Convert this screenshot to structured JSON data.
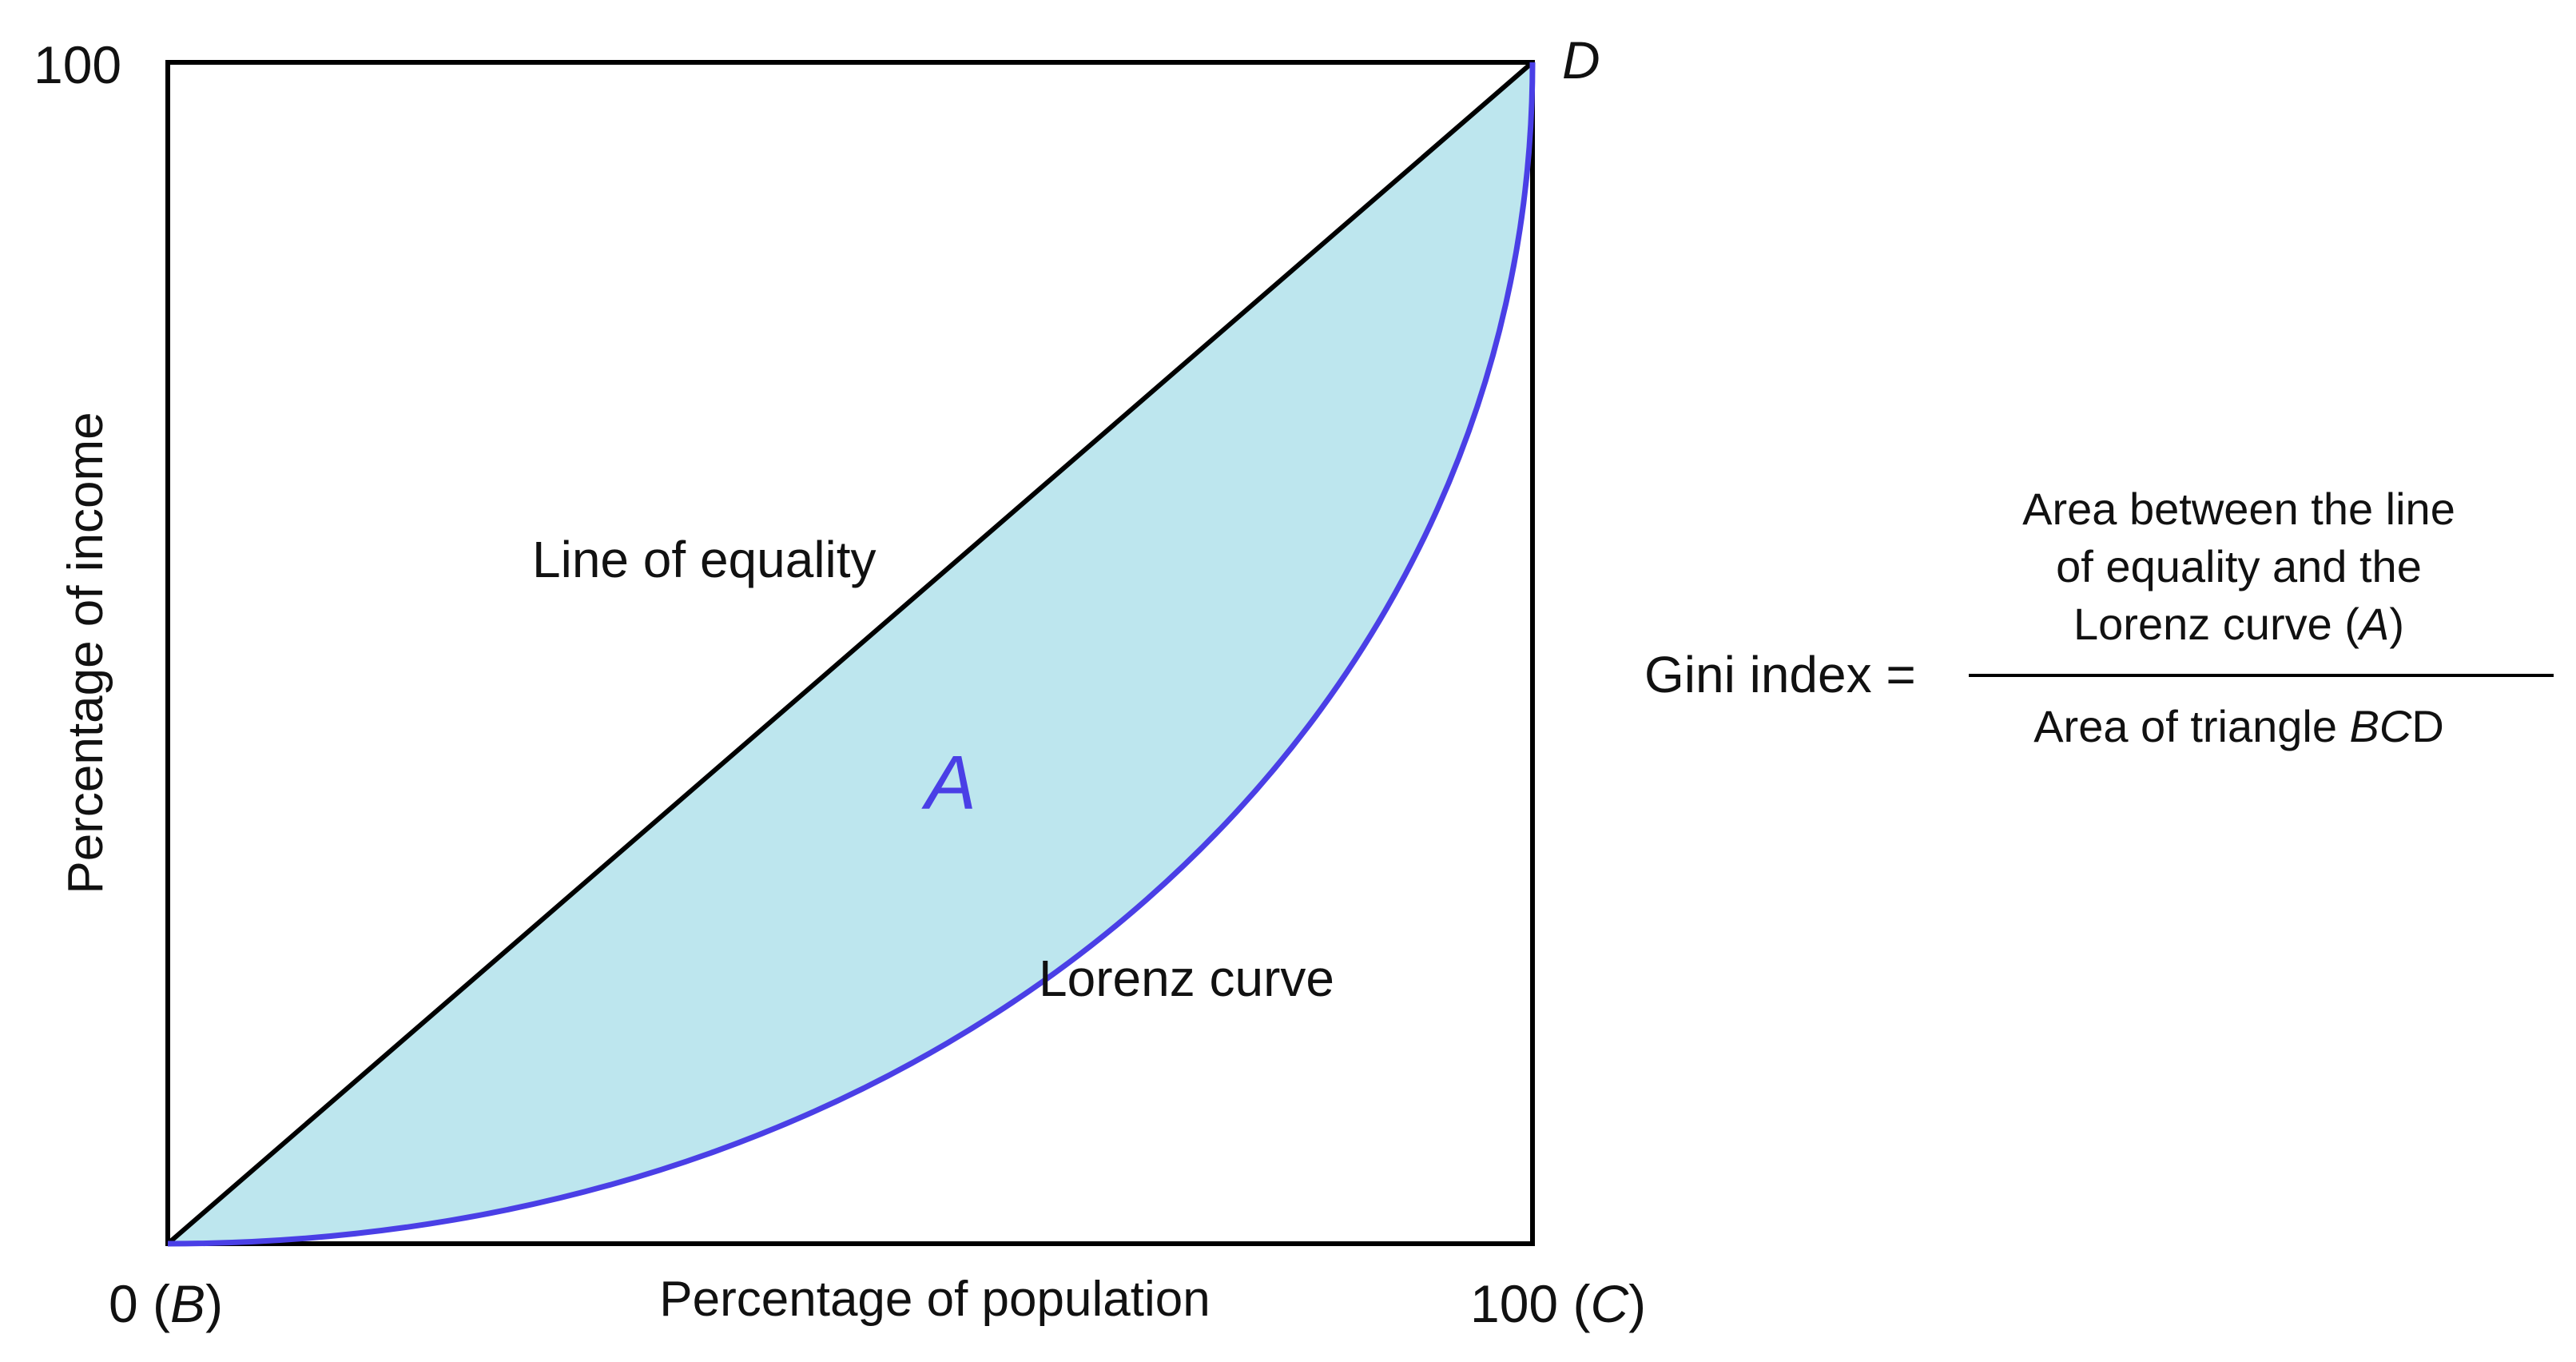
{
  "colors": {
    "frame": "#000000",
    "equality_line": "#000000",
    "lorenz_curve": "#4a3fe6",
    "area_fill": "#bde6ee",
    "area_label": "#4a3fe6",
    "text": "#111111"
  },
  "labels": {
    "y_top_tick": "100",
    "y_axis_label": "Percentage of income",
    "x_axis_label": "Percentage of population",
    "origin_num": "0",
    "origin_letter": "B",
    "x_end_num": "100",
    "x_end_letter": "C",
    "corner_letter": "D",
    "equality_line_label": "Line of equality",
    "lorenz_label": "Lorenz curve",
    "area_label": "A"
  },
  "formula": {
    "lhs": "Gini index =",
    "numerator_line1": "Area between the line",
    "numerator_line2": "of equality and the",
    "numerator_line3_prefix": "Lorenz curve (",
    "numerator_line3_italic": "A",
    "numerator_line3_suffix": ")",
    "denominator_prefix": "Area of triangle ",
    "denominator_italic": "BC",
    "denominator_suffix": "D"
  }
}
